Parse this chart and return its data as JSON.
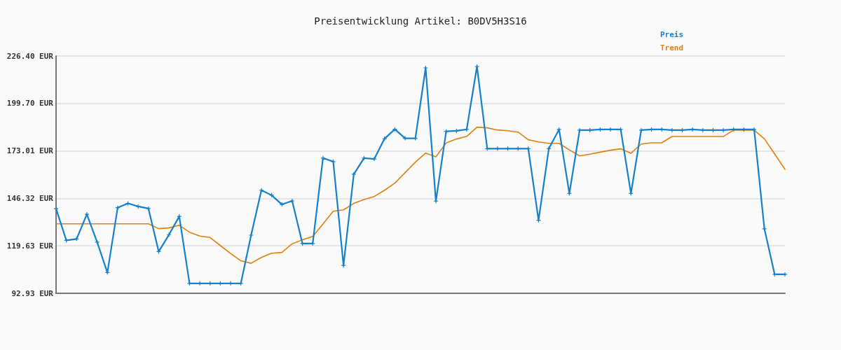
{
  "chart_data": {
    "type": "line",
    "title": "Preisentwicklung Artikel: B0DV5H3S16",
    "categories": [
      null,
      null,
      null,
      null,
      null,
      null,
      null,
      null,
      null,
      null,
      null,
      null,
      null,
      null,
      null,
      null,
      null,
      null,
      null,
      null,
      null,
      null,
      null,
      null,
      null,
      null,
      null,
      null,
      null,
      null,
      null,
      null,
      null,
      null,
      null,
      null,
      null,
      null,
      null,
      null,
      null,
      null,
      null,
      null,
      null,
      null,
      null,
      null,
      null,
      null,
      null,
      null,
      null,
      null,
      null,
      null,
      null,
      null,
      null,
      null,
      null,
      null,
      null,
      null,
      null,
      null,
      null,
      null,
      null,
      null,
      null,
      null
    ],
    "series": [
      {
        "name": "Preis",
        "color": "#1580cc",
        "marker": "cross",
        "values": [
          140.5,
          122.7,
          123.5,
          137.4,
          121.7,
          104.6,
          141.1,
          143.5,
          141.8,
          140.6,
          116.4,
          125.9,
          136.2,
          98.5,
          98.5,
          98.5,
          98.5,
          98.5,
          98.5,
          125.6,
          150.9,
          148.1,
          142.9,
          144.9,
          120.9,
          120.9,
          169.0,
          167.0,
          108.6,
          159.9,
          169.0,
          168.5,
          179.9,
          185.2,
          180.1,
          180.1,
          219.7,
          144.8,
          184.0,
          184.3,
          185.1,
          220.5,
          174.3,
          174.3,
          174.3,
          174.3,
          174.3,
          134.0,
          174.3,
          185.1,
          149.1,
          184.7,
          184.7,
          185.1,
          185.1,
          185.1,
          149.1,
          184.7,
          185.1,
          185.1,
          184.7,
          184.7,
          185.1,
          184.7,
          184.7,
          184.7,
          185.1,
          185.1,
          185.1,
          129.2,
          103.6,
          103.6
        ]
      },
      {
        "name": "Trend",
        "color": "#e0800f",
        "values": [
          132.0,
          132.0,
          132.0,
          132.0,
          132.0,
          132.0,
          132.0,
          132.0,
          132.0,
          132.0,
          129.3,
          129.7,
          131.2,
          127.3,
          125.1,
          124.3,
          119.8,
          115.3,
          111.2,
          109.8,
          113.1,
          115.5,
          115.9,
          120.8,
          123.0,
          124.9,
          131.9,
          139.1,
          139.9,
          143.5,
          145.7,
          147.4,
          150.9,
          154.9,
          160.8,
          166.7,
          171.8,
          169.7,
          177.5,
          179.7,
          181.2,
          186.4,
          186.0,
          184.8,
          184.4,
          183.6,
          179.3,
          178.1,
          177.3,
          177.3,
          173.6,
          170.2,
          171.2,
          172.3,
          173.4,
          174.2,
          171.7,
          176.9,
          177.6,
          177.6,
          181.1,
          181.1,
          181.1,
          181.1,
          181.1,
          181.1,
          184.7,
          184.7,
          184.7,
          179.8,
          171.3,
          162.7
        ]
      }
    ],
    "ylim": [
      92.93,
      226.4
    ],
    "yticks": [
      {
        "value": 92.93,
        "label": "92.93 EUR"
      },
      {
        "value": 119.63,
        "label": "119.63 EUR"
      },
      {
        "value": 146.32,
        "label": "146.32 EUR"
      },
      {
        "value": 173.01,
        "label": "173.01 EUR"
      },
      {
        "value": 199.7,
        "label": "199.70 EUR"
      },
      {
        "value": 226.4,
        "label": "226.40 EUR"
      }
    ],
    "grid": "y",
    "legend": "top right",
    "tick_labels": "y"
  }
}
